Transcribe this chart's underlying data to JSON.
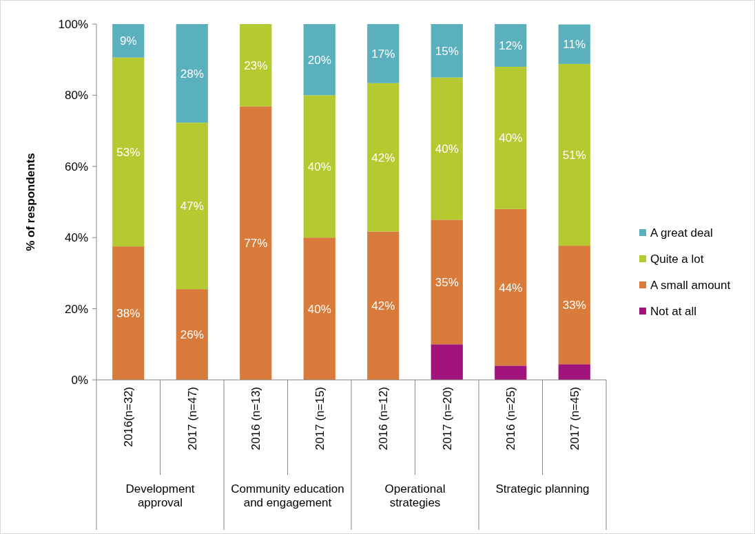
{
  "chart_data": {
    "type": "bar",
    "stacked": true,
    "ylabel": "% of respondents",
    "categories": [
      "2016(n=32)",
      "2017 (n=47)",
      "2016 (n=13)",
      "2017 (n=15)",
      "2016 (n=12)",
      "2017 (n=20)",
      "2016 (n=25)",
      "2017 (n=45)"
    ],
    "annotations": [
      "Development approval",
      "Community education and engagement",
      "Operational strategies",
      "Strategic planning"
    ],
    "series": [
      {
        "name": "Not at all",
        "color": "#a0147c",
        "values": [
          null,
          null,
          null,
          null,
          null,
          10,
          4,
          4.4
        ],
        "value_labels": [
          null,
          null,
          null,
          null,
          null,
          null,
          null,
          null
        ]
      },
      {
        "name": "A small amount",
        "color": "#d97b3a",
        "values": [
          37.5,
          25.5,
          76.9,
          40,
          41.7,
          35,
          44,
          33.3
        ],
        "value_labels": [
          "38%",
          "26%",
          "77%",
          "40%",
          "42%",
          "35%",
          "44%",
          "33%"
        ]
      },
      {
        "name": "Quite a lot",
        "color": "#b5c930",
        "values": [
          53.1,
          46.8,
          23.1,
          40,
          41.7,
          40,
          40,
          51.1
        ],
        "value_labels": [
          "53%",
          "47%",
          "23%",
          "40%",
          "42%",
          "40%",
          "40%",
          "51%"
        ]
      },
      {
        "name": "A great deal",
        "color": "#5bb0bd",
        "values": [
          9.4,
          27.7,
          null,
          20,
          16.6,
          15,
          12,
          11.1
        ],
        "value_labels": [
          "9%",
          "28%",
          null,
          "20%",
          "17%",
          "15%",
          "12%",
          "11%"
        ]
      }
    ],
    "ylim": [
      0,
      100
    ],
    "yticks": [
      {
        "value": 0,
        "label": "0%"
      },
      {
        "value": 20,
        "label": "20%"
      },
      {
        "value": 40,
        "label": "40%"
      },
      {
        "value": 60,
        "label": "60%"
      },
      {
        "value": 80,
        "label": "80%"
      },
      {
        "value": 100,
        "label": "100%"
      }
    ],
    "grid": false,
    "legend": "right"
  }
}
